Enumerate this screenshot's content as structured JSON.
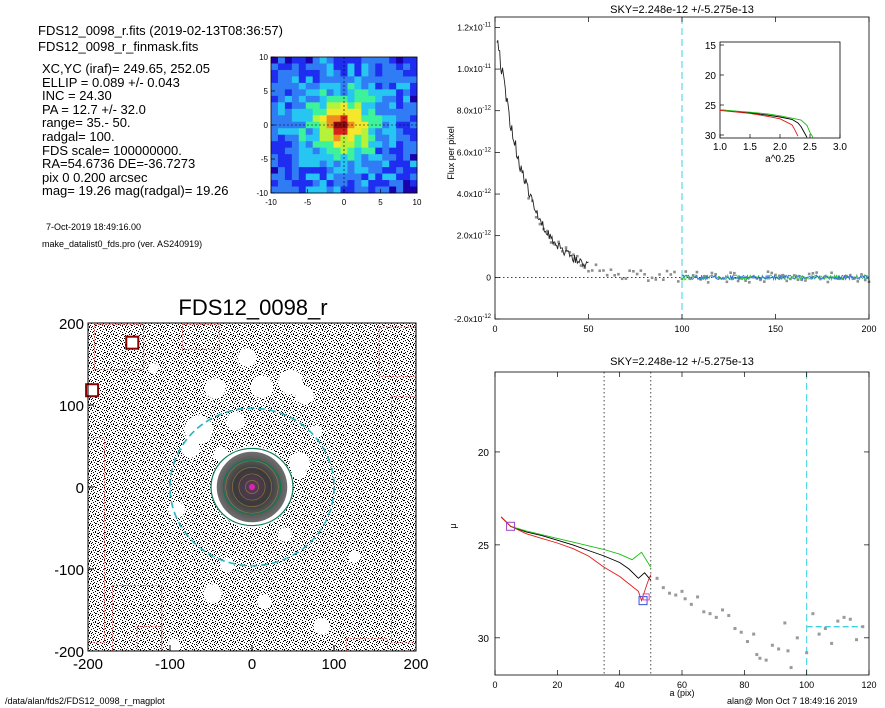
{
  "header": {
    "file_line": "FDS12_0098_r.fits  (2019-02-13T08:36:57)",
    "mask_line": "FDS12_0098_r_finmask.fits",
    "params": [
      "XC,YC (iraf)=   249.65, 252.05",
      "ELLIP = 0.089 +/- 0.043",
      "INC   = 24.30",
      "PA    =  12.7 +/-  32.0",
      "range=   35.-   50.",
      "radgal=  100.",
      "FDS scale=  100000000.",
      "RA=54.6736   DE=-36.7273",
      "pix 0 0.200 arcsec",
      "mag=  19.26  mag(radgal)=  19.26"
    ],
    "date_line": "7-Oct-2019 18:49:16.00",
    "program_line": "make_datalist0_fds.pro (ver. AS240919)"
  },
  "footer": {
    "path": "/data/alan/fds2/FDS12_0098_r_magplot",
    "user_time": "alan@  Mon Oct  7 18:49:16 2019"
  },
  "chart_data": [
    {
      "id": "thumbnail",
      "type": "heatmap",
      "xlim": [
        -10,
        10
      ],
      "ylim": [
        -10,
        10
      ],
      "xticks": [
        "-10",
        "-5",
        "0",
        "5",
        "10"
      ],
      "yticks": [
        "10",
        "5",
        "0",
        "-5",
        "-10"
      ],
      "palette": [
        "#1b00ad",
        "#1e2df0",
        "#2f7cf5",
        "#27c6f2",
        "#3df29a",
        "#b6f23a",
        "#f4e72c",
        "#f18c1e",
        "#d8211a",
        "#8a0c12"
      ],
      "peak": [
        -0.2,
        0.2
      ]
    },
    {
      "id": "image",
      "type": "scatter",
      "title": "FDS12_0098_r",
      "xlim": [
        -200,
        200
      ],
      "ylim": [
        -200,
        200
      ],
      "xticks": [
        "-200",
        "-100",
        "0",
        "100",
        "200"
      ],
      "yticks": [
        "200",
        "100",
        "0",
        "-100",
        "-200"
      ],
      "ellipse_radius": 100,
      "range_radii": [
        35,
        50
      ],
      "mask_holes": [
        [
          -65,
          70,
          14
        ],
        [
          -45,
          120,
          10
        ],
        [
          -20,
          80,
          9
        ],
        [
          -6,
          158,
          9
        ],
        [
          12,
          122,
          11
        ],
        [
          47,
          128,
          12
        ],
        [
          64,
          112,
          9
        ],
        [
          -75,
          47,
          9
        ],
        [
          -38,
          40,
          7
        ],
        [
          58,
          30,
          10
        ],
        [
          57,
          18,
          7
        ],
        [
          -92,
          -28,
          8
        ],
        [
          40,
          -58,
          7
        ],
        [
          -30,
          -95,
          7
        ],
        [
          -48,
          -130,
          9
        ],
        [
          15,
          -140,
          7
        ],
        [
          85,
          -170,
          8
        ],
        [
          -95,
          -193,
          6
        ],
        [
          78,
          68,
          6
        ],
        [
          -120,
          145,
          5
        ],
        [
          125,
          -85,
          6
        ]
      ]
    },
    {
      "id": "flux_profile",
      "type": "scatter",
      "title": "SKY=2.248e-12 +/-5.275e-13",
      "xlabel": "",
      "ylabel": "Flux per pixel",
      "xlim": [
        0,
        200
      ],
      "ylim": [
        -2e-12,
        1.25e-11
      ],
      "xticks": [
        0,
        50,
        100,
        150,
        200
      ],
      "yticks": [
        -2e-12,
        0,
        2e-12,
        4e-12,
        6e-12,
        8e-12,
        1e-11,
        1.2e-11
      ],
      "ytick_labels": [
        [
          "-2.0",
          "-12"
        ],
        [
          "0",
          ""
        ],
        [
          "2.0",
          "-12"
        ],
        [
          "4.0",
          "-12"
        ],
        [
          "6.0",
          "-12"
        ],
        [
          "8.0",
          "-12"
        ],
        [
          "1.0",
          "-11"
        ],
        [
          "1.2",
          "-11"
        ]
      ],
      "radgal_line": 100,
      "model": {
        "amplitude": 1.25e-11,
        "scale": 16.0
      }
    },
    {
      "id": "inset",
      "type": "line",
      "xlabel": "a^0.25",
      "xlim": [
        1.0,
        3.0
      ],
      "ylim": [
        30.5,
        14.5
      ],
      "xticks": [
        "1.0",
        "1.5",
        "2.0",
        "2.5",
        "3.0"
      ],
      "yticks": [
        "15",
        "20",
        "25",
        "30"
      ],
      "series": [
        {
          "color": "#000000",
          "points": [
            [
              1.0,
              25.8
            ],
            [
              1.5,
              26.3
            ],
            [
              1.8,
              26.7
            ],
            [
              2.0,
              27.0
            ],
            [
              2.2,
              27.4
            ],
            [
              2.3,
              28.0
            ],
            [
              2.35,
              28.6
            ],
            [
              2.4,
              29.5
            ],
            [
              2.45,
              30.4
            ]
          ]
        },
        {
          "color": "#15c010",
          "points": [
            [
              1.0,
              25.8
            ],
            [
              1.5,
              26.2
            ],
            [
              1.8,
              26.5
            ],
            [
              2.0,
              26.8
            ],
            [
              2.2,
              27.2
            ],
            [
              2.35,
              27.5
            ],
            [
              2.45,
              28.4
            ],
            [
              2.5,
              29.6
            ],
            [
              2.55,
              30.4
            ]
          ]
        },
        {
          "color": "#e81818",
          "points": [
            [
              1.0,
              25.9
            ],
            [
              1.5,
              26.4
            ],
            [
              1.8,
              26.9
            ],
            [
              2.0,
              27.3
            ],
            [
              2.1,
              27.8
            ],
            [
              2.2,
              28.3
            ],
            [
              2.25,
              29.2
            ],
            [
              2.3,
              30.2
            ]
          ]
        }
      ]
    },
    {
      "id": "mu_profile",
      "type": "line",
      "title": "SKY=2.248e-12 +/-5.275e-13",
      "xlabel": "a (pix)",
      "ylabel": "μ",
      "xlim": [
        0,
        120
      ],
      "ylim": [
        32,
        15.7
      ],
      "xticks": [
        0,
        20,
        40,
        60,
        80,
        100,
        120
      ],
      "yticks": [
        20,
        25,
        30
      ],
      "vlines_dotted": [
        35,
        50
      ],
      "radgal_line": 100,
      "sky_level": 29.4,
      "series": [
        {
          "color": "#000000",
          "points": [
            [
              2,
              23.5
            ],
            [
              5,
              24.0
            ],
            [
              10,
              24.3
            ],
            [
              15,
              24.5
            ],
            [
              20,
              24.75
            ],
            [
              25,
              25.0
            ],
            [
              30,
              25.3
            ],
            [
              35,
              25.6
            ],
            [
              40,
              25.95
            ],
            [
              43,
              26.3
            ],
            [
              46,
              26.8
            ],
            [
              48,
              26.5
            ],
            [
              50,
              26.9
            ]
          ]
        },
        {
          "color": "#15c010",
          "points": [
            [
              2,
              23.5
            ],
            [
              5,
              24.0
            ],
            [
              10,
              24.25
            ],
            [
              15,
              24.45
            ],
            [
              20,
              24.65
            ],
            [
              25,
              24.85
            ],
            [
              30,
              25.05
            ],
            [
              35,
              25.25
            ],
            [
              40,
              25.5
            ],
            [
              44,
              25.8
            ],
            [
              47,
              25.4
            ],
            [
              50,
              26.2
            ]
          ]
        },
        {
          "color": "#e81818",
          "points": [
            [
              2,
              23.5
            ],
            [
              5,
              24.0
            ],
            [
              10,
              24.4
            ],
            [
              15,
              24.65
            ],
            [
              20,
              24.9
            ],
            [
              25,
              25.2
            ],
            [
              30,
              25.6
            ],
            [
              35,
              26.2
            ],
            [
              40,
              26.7
            ],
            [
              43,
              27.1
            ],
            [
              46,
              27.5
            ],
            [
              47,
              28.0
            ],
            [
              49,
              27.0
            ],
            [
              50,
              26.6
            ]
          ]
        }
      ],
      "gray_points": [
        [
          52,
          26.8
        ],
        [
          54,
          27.3
        ],
        [
          56,
          27.6
        ],
        [
          58,
          27.7
        ],
        [
          60,
          27.5
        ],
        [
          61,
          27.9
        ],
        [
          63,
          28.2
        ],
        [
          65,
          27.8
        ],
        [
          67,
          28.6
        ],
        [
          69,
          28.7
        ],
        [
          71,
          28.9
        ],
        [
          73,
          28.5
        ],
        [
          75,
          28.8
        ],
        [
          77,
          29.5
        ],
        [
          79,
          29.7
        ],
        [
          81,
          30.2
        ],
        [
          83,
          29.8
        ],
        [
          84,
          30.9
        ],
        [
          85,
          31.1
        ],
        [
          87,
          31.2
        ],
        [
          89,
          30.4
        ],
        [
          91,
          30.6
        ],
        [
          93,
          29.2
        ],
        [
          94,
          30.7
        ],
        [
          95,
          31.6
        ],
        [
          97,
          30.0
        ],
        [
          100,
          30.8
        ],
        [
          102,
          28.7
        ],
        [
          104,
          29.8
        ],
        [
          106,
          29.5
        ],
        [
          108,
          30.3
        ],
        [
          110,
          29.1
        ],
        [
          112,
          28.9
        ],
        [
          114,
          29.0
        ],
        [
          116,
          30.1
        ],
        [
          118,
          29.4
        ]
      ]
    }
  ]
}
